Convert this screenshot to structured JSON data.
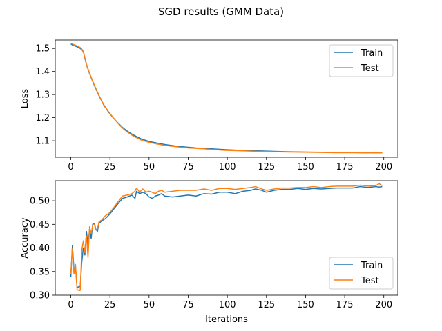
{
  "figure": {
    "title": "SGD results (GMM Data)"
  },
  "chart_data": [
    {
      "type": "line",
      "ylabel": "Loss",
      "xlabel": "",
      "xlim": [
        -9.95,
        208.95
      ],
      "ylim": [
        1.0285,
        1.5365
      ],
      "xticks": [
        0,
        25,
        50,
        75,
        100,
        125,
        150,
        175,
        200
      ],
      "yticks": [
        1.1,
        1.2,
        1.3,
        1.4,
        1.5
      ],
      "ytick_decimals": 1,
      "legend_position": "upper right",
      "grid": false,
      "x": [
        0,
        1,
        2,
        3,
        4,
        5,
        6,
        7,
        8,
        10,
        12,
        15,
        18,
        21,
        24,
        27,
        30,
        33,
        36,
        40,
        45,
        50,
        55,
        60,
        65,
        70,
        75,
        80,
        85,
        90,
        100,
        110,
        120,
        130,
        140,
        150,
        160,
        170,
        180,
        190,
        199
      ],
      "series": [
        {
          "name": "Train",
          "color": "#1f77b4",
          "values": [
            1.52,
            1.515,
            1.512,
            1.51,
            1.507,
            1.505,
            1.5,
            1.495,
            1.485,
            1.43,
            1.39,
            1.34,
            1.295,
            1.255,
            1.225,
            1.2,
            1.178,
            1.158,
            1.142,
            1.125,
            1.108,
            1.097,
            1.09,
            1.084,
            1.079,
            1.075,
            1.072,
            1.069,
            1.067,
            1.065,
            1.061,
            1.058,
            1.056,
            1.054,
            1.052,
            1.051,
            1.05,
            1.049,
            1.049,
            1.048,
            1.048
          ]
        },
        {
          "name": "Test",
          "color": "#ff7f0e",
          "values": [
            1.522,
            1.52,
            1.516,
            1.514,
            1.511,
            1.508,
            1.504,
            1.498,
            1.487,
            1.432,
            1.392,
            1.342,
            1.297,
            1.257,
            1.227,
            1.201,
            1.177,
            1.155,
            1.138,
            1.12,
            1.103,
            1.093,
            1.086,
            1.08,
            1.076,
            1.072,
            1.069,
            1.067,
            1.065,
            1.062,
            1.058,
            1.056,
            1.054,
            1.052,
            1.051,
            1.05,
            1.049,
            1.048,
            1.048,
            1.047,
            1.047
          ]
        }
      ]
    },
    {
      "type": "line",
      "ylabel": "Accuracy",
      "xlabel": "Iterations",
      "xlim": [
        -9.95,
        208.95
      ],
      "ylim": [
        0.3,
        0.5425
      ],
      "xticks": [
        0,
        25,
        50,
        75,
        100,
        125,
        150,
        175,
        200
      ],
      "yticks": [
        0.3,
        0.35,
        0.4,
        0.45,
        0.5
      ],
      "ytick_decimals": 2,
      "legend_position": "lower right",
      "grid": false,
      "x": [
        0,
        1,
        2,
        3,
        4,
        5,
        6,
        7,
        8,
        9,
        10,
        11,
        12,
        13,
        14,
        15,
        16,
        17,
        18,
        20,
        22,
        25,
        28,
        30,
        33,
        36,
        39,
        41,
        42,
        44,
        46,
        48,
        50,
        52,
        54,
        56,
        58,
        60,
        65,
        70,
        75,
        80,
        85,
        90,
        95,
        100,
        105,
        110,
        115,
        118,
        122,
        125,
        130,
        135,
        140,
        145,
        150,
        155,
        160,
        165,
        170,
        175,
        180,
        185,
        190,
        195,
        197,
        199
      ],
      "series": [
        {
          "name": "Train",
          "color": "#1f77b4",
          "values": [
            0.338,
            0.405,
            0.355,
            0.36,
            0.315,
            0.318,
            0.318,
            0.37,
            0.4,
            0.385,
            0.435,
            0.405,
            0.44,
            0.42,
            0.45,
            0.452,
            0.44,
            0.435,
            0.452,
            0.458,
            0.462,
            0.472,
            0.485,
            0.493,
            0.505,
            0.508,
            0.512,
            0.505,
            0.52,
            0.515,
            0.518,
            0.515,
            0.508,
            0.505,
            0.51,
            0.512,
            0.515,
            0.51,
            0.508,
            0.51,
            0.512,
            0.51,
            0.515,
            0.514,
            0.518,
            0.518,
            0.515,
            0.52,
            0.522,
            0.525,
            0.522,
            0.518,
            0.522,
            0.524,
            0.524,
            0.526,
            0.524,
            0.526,
            0.525,
            0.526,
            0.527,
            0.527,
            0.527,
            0.53,
            0.528,
            0.53,
            0.529,
            0.53
          ]
        },
        {
          "name": "Test",
          "color": "#ff7f0e",
          "values": [
            0.345,
            0.398,
            0.345,
            0.365,
            0.312,
            0.31,
            0.31,
            0.395,
            0.415,
            0.39,
            0.425,
            0.38,
            0.445,
            0.43,
            0.448,
            0.45,
            0.438,
            0.44,
            0.455,
            0.46,
            0.468,
            0.475,
            0.488,
            0.497,
            0.51,
            0.512,
            0.515,
            0.52,
            0.527,
            0.518,
            0.525,
            0.518,
            0.52,
            0.518,
            0.515,
            0.52,
            0.522,
            0.518,
            0.52,
            0.522,
            0.522,
            0.522,
            0.525,
            0.522,
            0.526,
            0.526,
            0.524,
            0.526,
            0.528,
            0.53,
            0.525,
            0.522,
            0.525,
            0.527,
            0.527,
            0.528,
            0.528,
            0.53,
            0.528,
            0.53,
            0.531,
            0.531,
            0.531,
            0.533,
            0.531,
            0.532,
            0.536,
            0.532
          ]
        }
      ]
    }
  ]
}
